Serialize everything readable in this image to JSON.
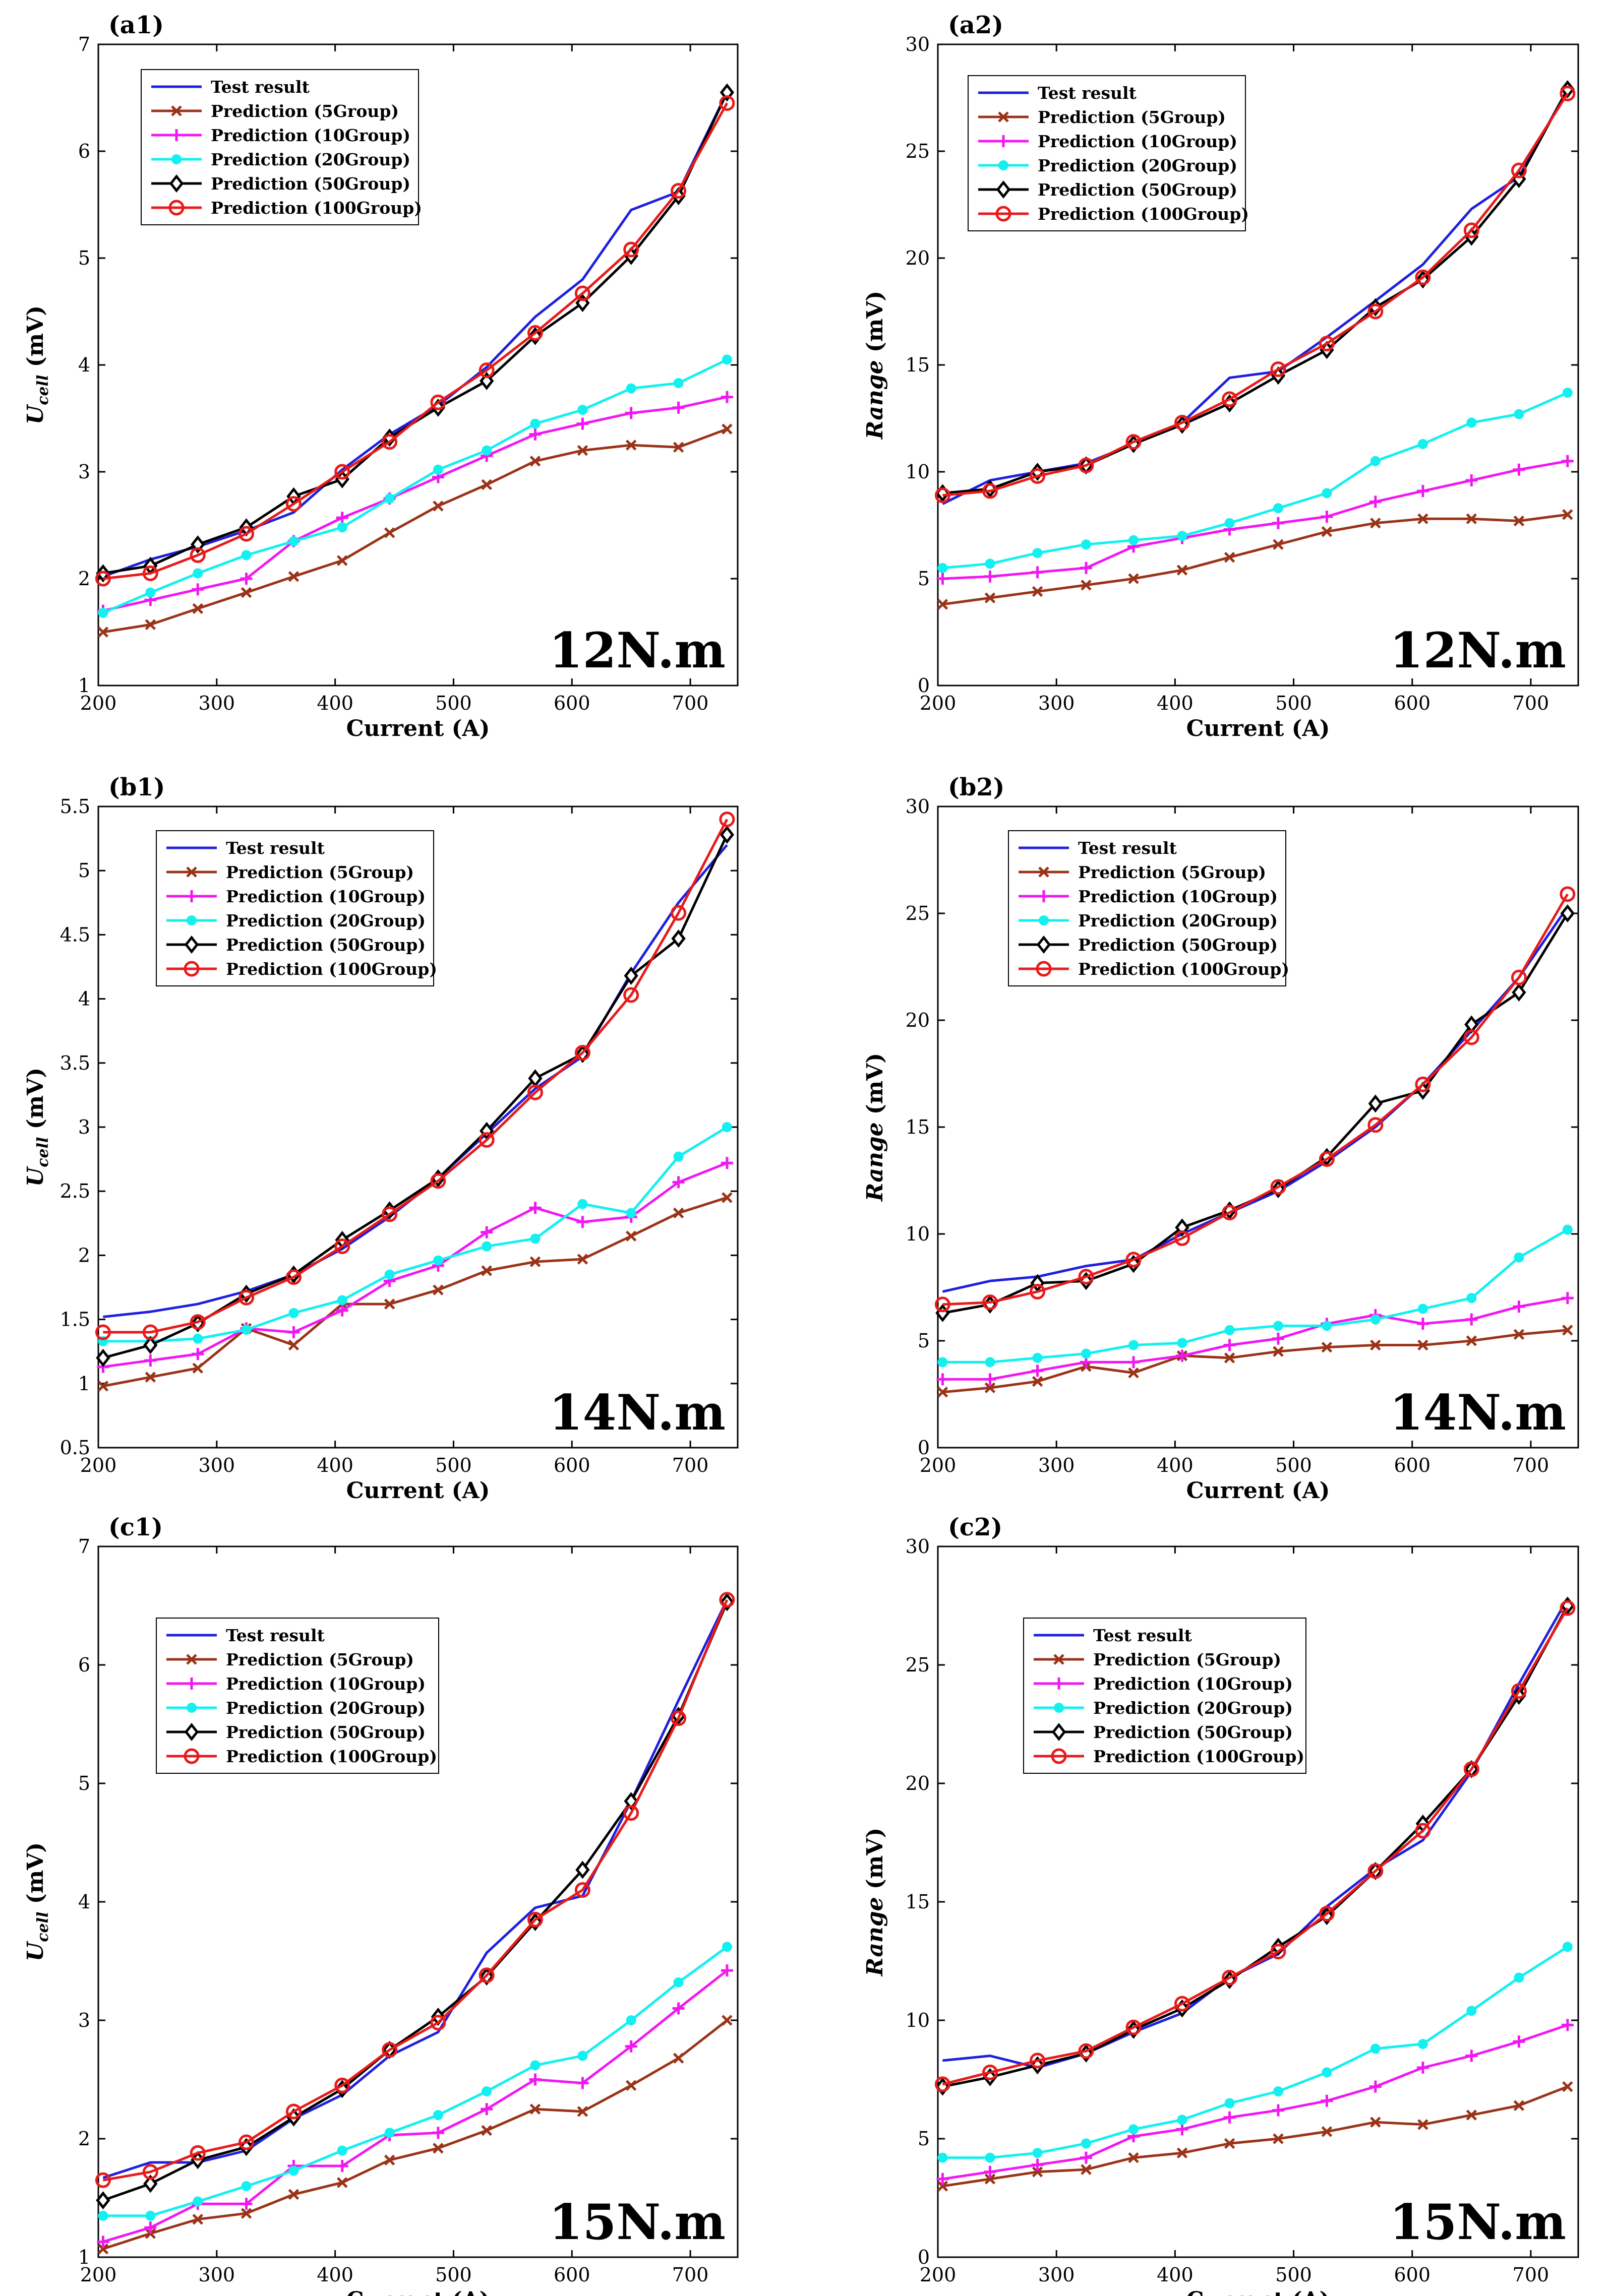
{
  "series_styles": [
    {
      "key": "test",
      "color": "#1f1fe0",
      "marker": "none"
    },
    {
      "key": "g5",
      "color": "#9a3318",
      "marker": "x"
    },
    {
      "key": "g10",
      "color": "#f217f2",
      "marker": "plus"
    },
    {
      "key": "g20",
      "color": "#12f0f0",
      "marker": "dot"
    },
    {
      "key": "g50",
      "color": "#000000",
      "marker": "diamond"
    },
    {
      "key": "g100",
      "color": "#e81a1a",
      "marker": "circle"
    }
  ],
  "chart_data": [
    {
      "type": "line",
      "panel_label": "(a1)",
      "condition": "12N.m",
      "xlabel": "Current (A)",
      "ylabel_main": "U",
      "ylabel_sub": "cell",
      "ylabel_rest": " (mV)",
      "xlim": [
        200,
        740
      ],
      "ylim": [
        1,
        7
      ],
      "xticks": [
        "200",
        "300",
        "400",
        "500",
        "600",
        "700"
      ],
      "yticks": [
        "1",
        "2",
        "3",
        "4",
        "5",
        "6",
        "7"
      ],
      "x": [
        204,
        244,
        284,
        325,
        365,
        406,
        446,
        487,
        528,
        569,
        609,
        650,
        690,
        731
      ],
      "series": [
        {
          "name": "Test result",
          "values": [
            2.02,
            2.18,
            2.3,
            2.45,
            2.62,
            3.02,
            3.35,
            3.62,
            3.98,
            4.45,
            4.8,
            5.45,
            5.62,
            6.55
          ]
        },
        {
          "name": "Prediction (5Group)",
          "values": [
            1.5,
            1.57,
            1.72,
            1.87,
            2.02,
            2.17,
            2.43,
            2.68,
            2.88,
            3.1,
            3.2,
            3.25,
            3.23,
            3.4
          ]
        },
        {
          "name": "Prediction (10Group)",
          "values": [
            1.7,
            1.8,
            1.9,
            2.0,
            2.35,
            2.57,
            2.75,
            2.95,
            3.15,
            3.35,
            3.45,
            3.55,
            3.6,
            3.7
          ]
        },
        {
          "name": "Prediction (20Group)",
          "values": [
            1.68,
            1.87,
            2.05,
            2.22,
            2.35,
            2.48,
            2.75,
            3.02,
            3.2,
            3.45,
            3.58,
            3.78,
            3.83,
            4.05
          ]
        },
        {
          "name": "Prediction (50Group)",
          "values": [
            2.05,
            2.12,
            2.32,
            2.48,
            2.77,
            2.93,
            3.32,
            3.6,
            3.85,
            4.27,
            4.58,
            5.02,
            5.58,
            6.55
          ]
        },
        {
          "name": "Prediction (100Group)",
          "values": [
            2.0,
            2.05,
            2.22,
            2.42,
            2.7,
            3.0,
            3.28,
            3.65,
            3.95,
            4.3,
            4.67,
            5.08,
            5.63,
            6.45
          ]
        }
      ]
    },
    {
      "type": "line",
      "panel_label": "(a2)",
      "condition": "12N.m",
      "xlabel": "Current (A)",
      "ylabel_main": "Range",
      "ylabel_sub": "",
      "ylabel_rest": " (mV)",
      "xlim": [
        200,
        740
      ],
      "ylim": [
        0,
        30
      ],
      "xticks": [
        "200",
        "300",
        "400",
        "500",
        "600",
        "700"
      ],
      "yticks": [
        "0",
        "5",
        "10",
        "15",
        "20",
        "25",
        "30"
      ],
      "x": [
        204,
        244,
        284,
        325,
        365,
        406,
        446,
        487,
        528,
        569,
        609,
        650,
        690,
        731
      ],
      "series": [
        {
          "name": "Test result",
          "values": [
            8.5,
            9.6,
            10.0,
            10.4,
            11.3,
            12.3,
            14.4,
            14.7,
            16.3,
            18.0,
            19.7,
            22.3,
            23.8,
            27.9
          ]
        },
        {
          "name": "Prediction (5Group)",
          "values": [
            3.8,
            4.1,
            4.4,
            4.7,
            5.0,
            5.4,
            6.0,
            6.6,
            7.2,
            7.6,
            7.8,
            7.8,
            7.7,
            8.0
          ]
        },
        {
          "name": "Prediction (10Group)",
          "values": [
            5.0,
            5.1,
            5.3,
            5.5,
            6.5,
            6.9,
            7.3,
            7.6,
            7.9,
            8.6,
            9.1,
            9.6,
            10.1,
            10.5
          ]
        },
        {
          "name": "Prediction (20Group)",
          "values": [
            5.5,
            5.7,
            6.2,
            6.6,
            6.8,
            7.0,
            7.6,
            8.3,
            9.0,
            10.5,
            11.3,
            12.3,
            12.7,
            13.7
          ]
        },
        {
          "name": "Prediction (50Group)",
          "values": [
            9.0,
            9.2,
            10.0,
            10.3,
            11.3,
            12.2,
            13.2,
            14.5,
            15.7,
            17.7,
            19.0,
            21.0,
            23.7,
            27.9
          ]
        },
        {
          "name": "Prediction (100Group)",
          "values": [
            8.9,
            9.1,
            9.8,
            10.3,
            11.4,
            12.3,
            13.4,
            14.8,
            16.0,
            17.5,
            19.1,
            21.3,
            24.1,
            27.7
          ]
        }
      ]
    },
    {
      "type": "line",
      "panel_label": "(b1)",
      "condition": "14N.m",
      "xlabel": "Current (A)",
      "ylabel_main": "U",
      "ylabel_sub": "cell",
      "ylabel_rest": " (mV)",
      "xlim": [
        200,
        740
      ],
      "ylim": [
        0.5,
        5.5
      ],
      "xticks": [
        "200",
        "300",
        "400",
        "500",
        "600",
        "700"
      ],
      "yticks": [
        "0.5",
        "1",
        "1.5",
        "2",
        "2.5",
        "3",
        "3.5",
        "4",
        "4.5",
        "5",
        "5.5"
      ],
      "x": [
        204,
        244,
        284,
        325,
        365,
        406,
        446,
        487,
        528,
        569,
        609,
        650,
        690,
        731
      ],
      "series": [
        {
          "name": "Test result",
          "values": [
            1.52,
            1.56,
            1.62,
            1.72,
            1.85,
            2.05,
            2.3,
            2.6,
            2.95,
            3.3,
            3.55,
            4.2,
            4.75,
            5.2
          ]
        },
        {
          "name": "Prediction (5Group)",
          "values": [
            0.98,
            1.05,
            1.12,
            1.43,
            1.3,
            1.62,
            1.62,
            1.73,
            1.88,
            1.95,
            1.97,
            2.15,
            2.33,
            2.45
          ]
        },
        {
          "name": "Prediction (10Group)",
          "values": [
            1.13,
            1.18,
            1.23,
            1.43,
            1.4,
            1.57,
            1.8,
            1.92,
            2.18,
            2.37,
            2.26,
            2.3,
            2.57,
            2.72
          ]
        },
        {
          "name": "Prediction (20Group)",
          "values": [
            1.33,
            1.33,
            1.35,
            1.42,
            1.55,
            1.65,
            1.85,
            1.96,
            2.07,
            2.13,
            2.4,
            2.33,
            2.77,
            3.0
          ]
        },
        {
          "name": "Prediction (50Group)",
          "values": [
            1.2,
            1.3,
            1.47,
            1.7,
            1.85,
            2.12,
            2.35,
            2.6,
            2.97,
            3.38,
            3.57,
            4.18,
            4.47,
            5.28
          ]
        },
        {
          "name": "Prediction (100Group)",
          "values": [
            1.4,
            1.4,
            1.48,
            1.67,
            1.83,
            2.07,
            2.32,
            2.58,
            2.9,
            3.27,
            3.58,
            4.03,
            4.67,
            5.4
          ]
        }
      ]
    },
    {
      "type": "line",
      "panel_label": "(b2)",
      "condition": "14N.m",
      "xlabel": "Current (A)",
      "ylabel_main": "Range",
      "ylabel_sub": "",
      "ylabel_rest": " (mV)",
      "xlim": [
        200,
        740
      ],
      "ylim": [
        0,
        30
      ],
      "xticks": [
        "200",
        "300",
        "400",
        "500",
        "600",
        "700"
      ],
      "yticks": [
        "0",
        "5",
        "10",
        "15",
        "20",
        "25",
        "30"
      ],
      "x": [
        204,
        244,
        284,
        325,
        365,
        406,
        446,
        487,
        528,
        569,
        609,
        650,
        690,
        731
      ],
      "series": [
        {
          "name": "Test result",
          "values": [
            7.3,
            7.8,
            8.0,
            8.5,
            8.8,
            10.0,
            11.0,
            12.0,
            13.4,
            15.0,
            17.0,
            19.5,
            22.0,
            25.3
          ]
        },
        {
          "name": "Prediction (5Group)",
          "values": [
            2.6,
            2.8,
            3.1,
            3.8,
            3.5,
            4.3,
            4.2,
            4.5,
            4.7,
            4.8,
            4.8,
            5.0,
            5.3,
            5.5
          ]
        },
        {
          "name": "Prediction (10Group)",
          "values": [
            3.2,
            3.2,
            3.6,
            4.0,
            4.0,
            4.3,
            4.8,
            5.1,
            5.8,
            6.2,
            5.8,
            6.0,
            6.6,
            7.0
          ]
        },
        {
          "name": "Prediction (20Group)",
          "values": [
            4.0,
            4.0,
            4.2,
            4.4,
            4.8,
            4.9,
            5.5,
            5.7,
            5.7,
            6.0,
            6.5,
            7.0,
            8.9,
            10.2
          ]
        },
        {
          "name": "Prediction (50Group)",
          "values": [
            6.3,
            6.7,
            7.7,
            7.8,
            8.6,
            10.3,
            11.1,
            12.1,
            13.6,
            16.1,
            16.7,
            19.8,
            21.3,
            25.0
          ]
        },
        {
          "name": "Prediction (100Group)",
          "values": [
            6.7,
            6.8,
            7.3,
            8.0,
            8.8,
            9.8,
            11.0,
            12.2,
            13.5,
            15.1,
            17.0,
            19.2,
            22.0,
            25.9
          ]
        }
      ]
    },
    {
      "type": "line",
      "panel_label": "(c1)",
      "condition": "15N.m",
      "xlabel": "Current (A)",
      "ylabel_main": "U",
      "ylabel_sub": "cell",
      "ylabel_rest": " (mV)",
      "xlim": [
        200,
        740
      ],
      "ylim": [
        1,
        7
      ],
      "xticks": [
        "200",
        "300",
        "400",
        "500",
        "600",
        "700"
      ],
      "yticks": [
        "1",
        "2",
        "3",
        "4",
        "5",
        "6",
        "7"
      ],
      "x": [
        204,
        244,
        284,
        325,
        365,
        406,
        446,
        487,
        528,
        569,
        609,
        650,
        690,
        731
      ],
      "series": [
        {
          "name": "Test result",
          "values": [
            1.67,
            1.8,
            1.8,
            1.9,
            2.17,
            2.37,
            2.7,
            2.9,
            3.57,
            3.95,
            4.05,
            4.85,
            5.7,
            6.55
          ]
        },
        {
          "name": "Prediction (5Group)",
          "values": [
            1.07,
            1.2,
            1.32,
            1.37,
            1.53,
            1.63,
            1.82,
            1.92,
            2.07,
            2.25,
            2.23,
            2.45,
            2.68,
            3.0
          ]
        },
        {
          "name": "Prediction (10Group)",
          "values": [
            1.13,
            1.25,
            1.45,
            1.45,
            1.77,
            1.77,
            2.03,
            2.05,
            2.25,
            2.5,
            2.47,
            2.78,
            3.1,
            3.42
          ]
        },
        {
          "name": "Prediction (20Group)",
          "values": [
            1.35,
            1.35,
            1.47,
            1.6,
            1.73,
            1.9,
            2.05,
            2.2,
            2.4,
            2.62,
            2.7,
            3.0,
            3.32,
            3.62
          ]
        },
        {
          "name": "Prediction (50Group)",
          "values": [
            1.48,
            1.62,
            1.82,
            1.93,
            2.18,
            2.42,
            2.75,
            3.03,
            3.37,
            3.83,
            4.27,
            4.85,
            5.57,
            6.53
          ]
        },
        {
          "name": "Prediction (100Group)",
          "values": [
            1.65,
            1.72,
            1.88,
            1.97,
            2.23,
            2.45,
            2.75,
            2.98,
            3.38,
            3.85,
            4.1,
            4.75,
            5.55,
            6.55
          ]
        }
      ]
    },
    {
      "type": "line",
      "panel_label": "(c2)",
      "condition": "15N.m",
      "xlabel": "Current (A)",
      "ylabel_main": "Range",
      "ylabel_sub": "",
      "ylabel_rest": " (mV)",
      "xlim": [
        200,
        740
      ],
      "ylim": [
        0,
        30
      ],
      "xticks": [
        "200",
        "300",
        "400",
        "500",
        "600",
        "700"
      ],
      "yticks": [
        "0",
        "5",
        "10",
        "15",
        "20",
        "25",
        "30"
      ],
      "x": [
        204,
        244,
        284,
        325,
        365,
        406,
        446,
        487,
        528,
        569,
        609,
        650,
        690,
        731
      ],
      "series": [
        {
          "name": "Test result",
          "values": [
            8.3,
            8.5,
            8.0,
            8.6,
            9.5,
            10.3,
            11.8,
            12.8,
            14.8,
            16.4,
            17.6,
            20.5,
            24.2,
            27.8
          ]
        },
        {
          "name": "Prediction (5Group)",
          "values": [
            3.0,
            3.3,
            3.6,
            3.7,
            4.2,
            4.4,
            4.8,
            5.0,
            5.3,
            5.7,
            5.6,
            6.0,
            6.4,
            7.2
          ]
        },
        {
          "name": "Prediction (10Group)",
          "values": [
            3.3,
            3.6,
            3.9,
            4.2,
            5.1,
            5.4,
            5.9,
            6.2,
            6.6,
            7.2,
            8.0,
            8.5,
            9.1,
            9.8
          ]
        },
        {
          "name": "Prediction (20Group)",
          "values": [
            4.2,
            4.2,
            4.4,
            4.8,
            5.4,
            5.8,
            6.5,
            7.0,
            7.8,
            8.8,
            9.0,
            10.4,
            11.8,
            13.1
          ]
        },
        {
          "name": "Prediction (50Group)",
          "values": [
            7.2,
            7.6,
            8.1,
            8.6,
            9.6,
            10.5,
            11.7,
            13.1,
            14.4,
            16.3,
            18.3,
            20.6,
            23.7,
            27.5
          ]
        },
        {
          "name": "Prediction (100Group)",
          "values": [
            7.3,
            7.8,
            8.3,
            8.7,
            9.7,
            10.7,
            11.8,
            12.9,
            14.5,
            16.3,
            18.0,
            20.6,
            23.9,
            27.4
          ]
        }
      ]
    }
  ]
}
